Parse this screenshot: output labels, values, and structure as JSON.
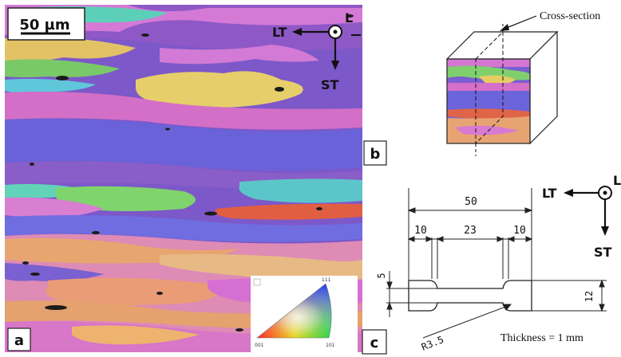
{
  "panel_labels": {
    "a": "a",
    "b": "b",
    "c": "c"
  },
  "scale_bar": {
    "label": "50 µm"
  },
  "axes_micrograph": {
    "lt": "LT",
    "st": "ST",
    "l": "L"
  },
  "axes_specimen": {
    "lt": "LT",
    "st": "ST",
    "l": "L"
  },
  "cross_section_label": "Cross-section",
  "dimensions": {
    "total_length": "50",
    "left_shoulder": "10",
    "gauge_length": "23",
    "right_shoulder": "10",
    "gauge_width": "5",
    "grip_width": "12",
    "fillet_radius": "R3.5"
  },
  "thickness_note": "Thickness = 1 mm",
  "ipf_key": {
    "corner_bottom_left": "001",
    "corner_bottom_right": "101",
    "corner_top": "111"
  },
  "colors": {
    "ebsd_base": "#8a5cc9",
    "ebsd_pink": "#d778d3",
    "ebsd_blue": "#6a6ee0",
    "ebsd_orange": "#e7a57a",
    "ebsd_yellow": "#e8d46a",
    "ebsd_green": "#86d678",
    "ebsd_teal": "#5ccfc6",
    "ebsd_red": "#e4644a",
    "line": "#222222"
  }
}
